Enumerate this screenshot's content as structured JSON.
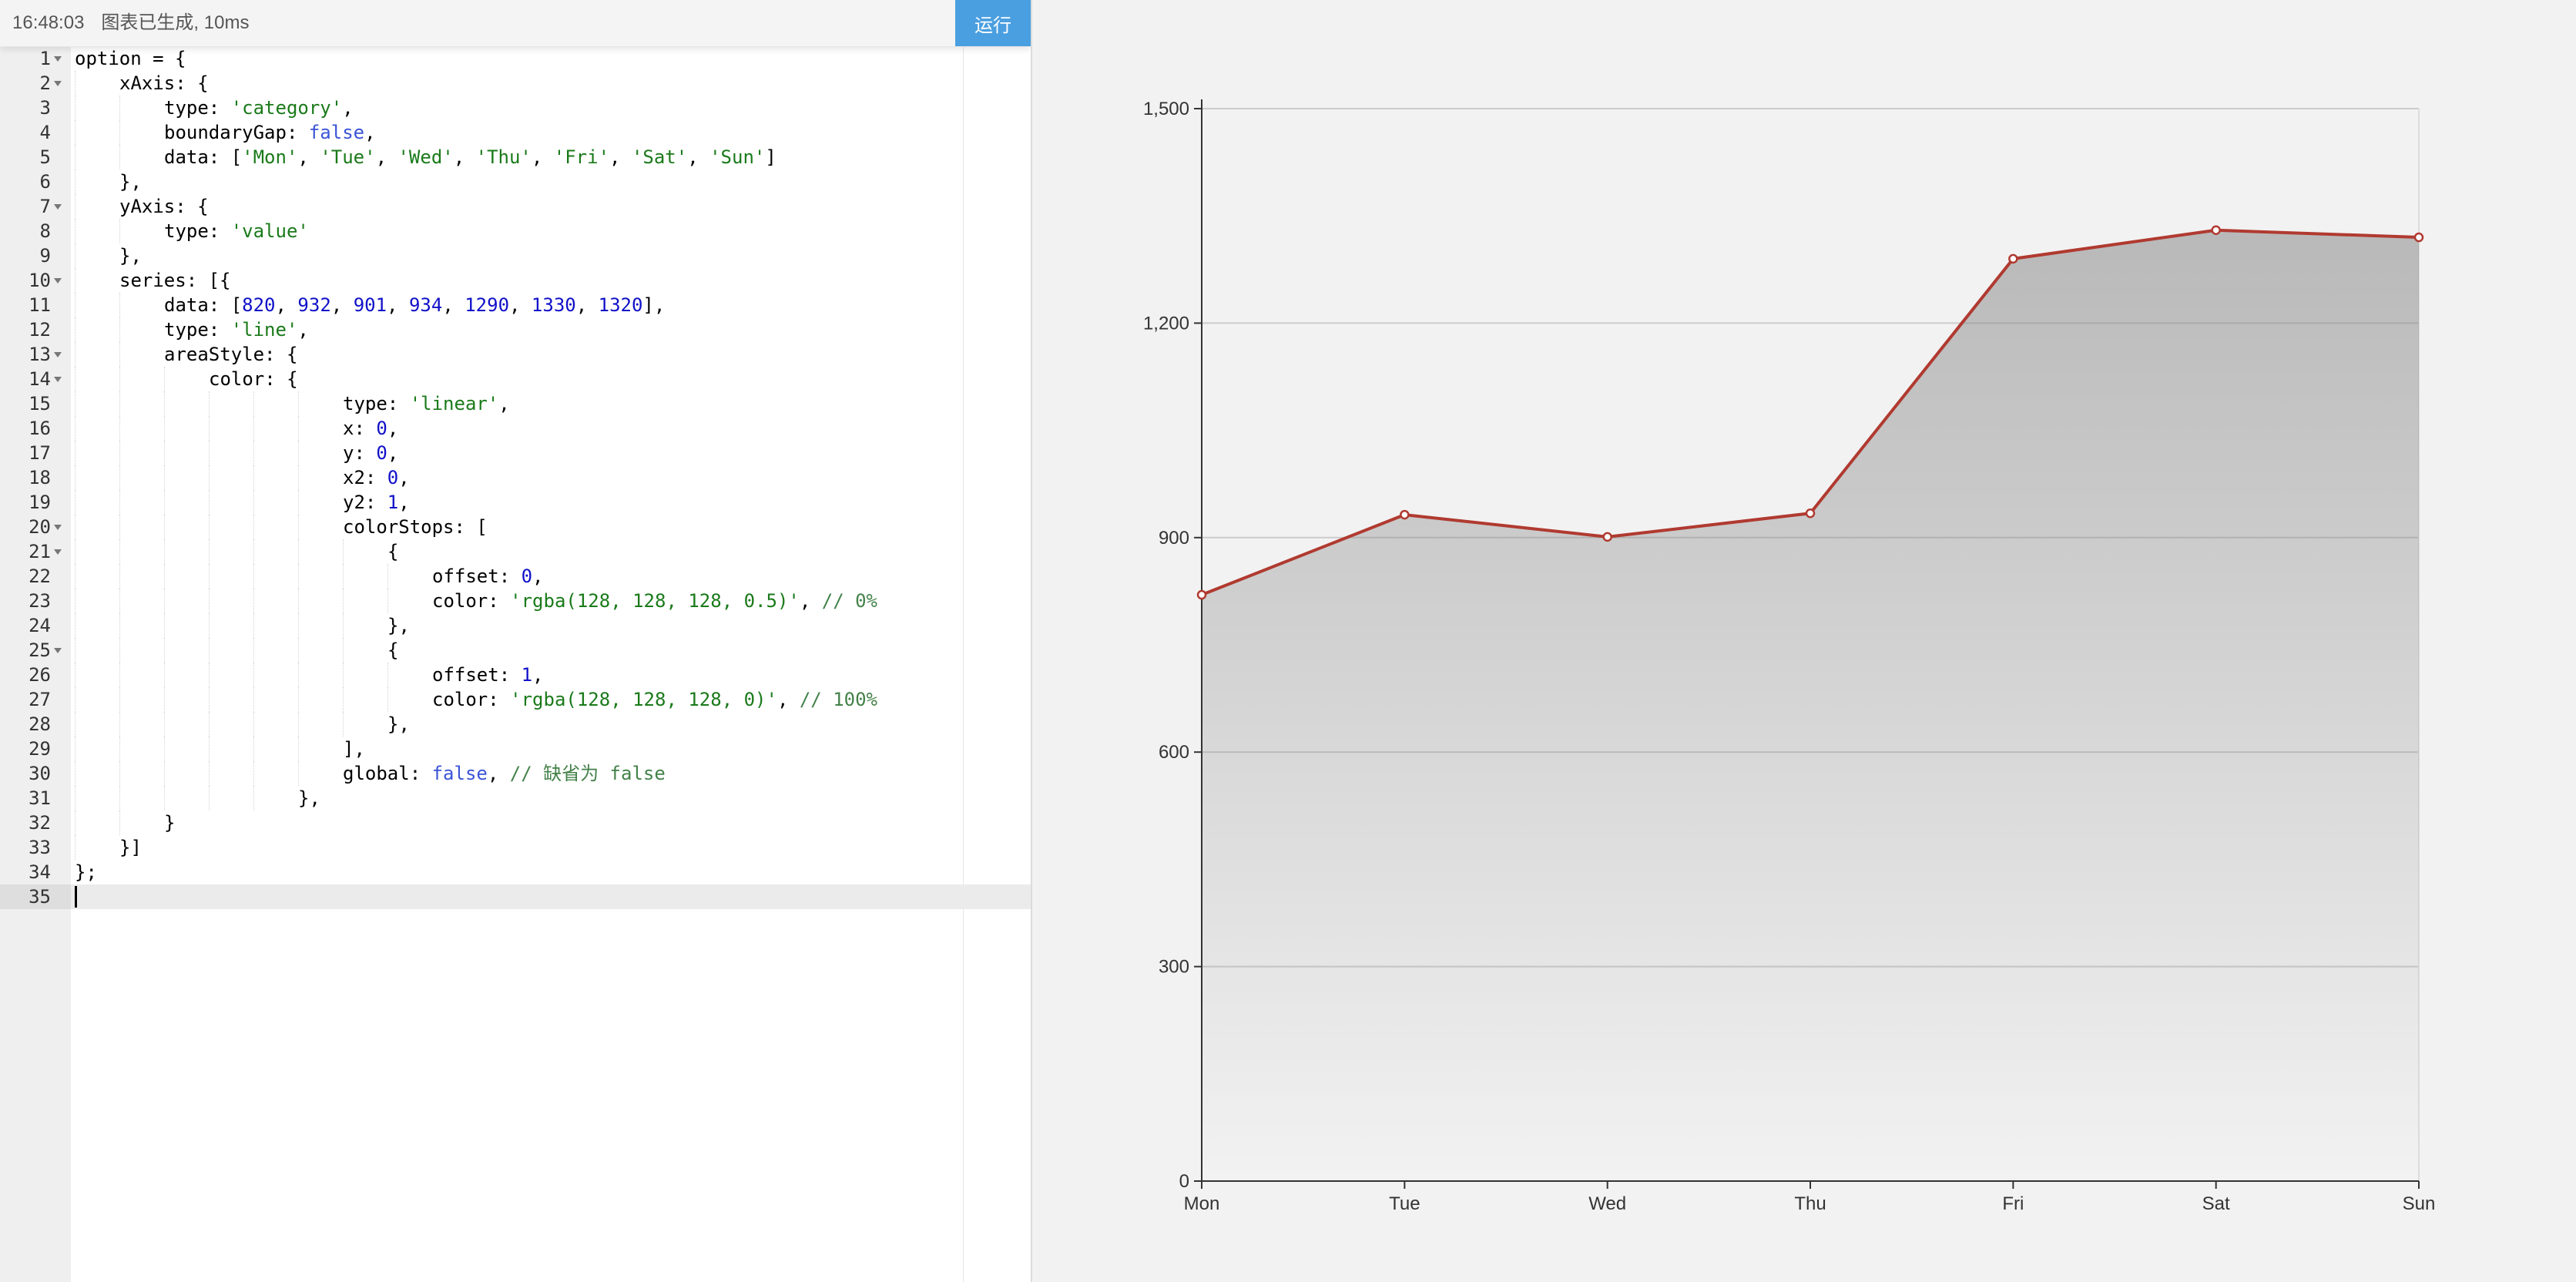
{
  "status": {
    "time": "16:48:03",
    "message": "图表已生成, 10ms"
  },
  "toolbar": {
    "run_label": "运行"
  },
  "editor": {
    "active_line": 35,
    "lines": [
      {
        "n": 1,
        "fold": true,
        "indent": 0,
        "tokens": [
          [
            "p",
            "option = {"
          ]
        ]
      },
      {
        "n": 2,
        "fold": true,
        "indent": 1,
        "tokens": [
          [
            "p",
            "xAxis: {"
          ]
        ]
      },
      {
        "n": 3,
        "fold": false,
        "indent": 2,
        "tokens": [
          [
            "p",
            "type: "
          ],
          [
            "s",
            "'category'"
          ],
          [
            "p",
            ","
          ]
        ]
      },
      {
        "n": 4,
        "fold": false,
        "indent": 2,
        "tokens": [
          [
            "p",
            "boundaryGap: "
          ],
          [
            "k",
            "false"
          ],
          [
            "p",
            ","
          ]
        ]
      },
      {
        "n": 5,
        "fold": false,
        "indent": 2,
        "tokens": [
          [
            "p",
            "data: ["
          ],
          [
            "s",
            "'Mon'"
          ],
          [
            "p",
            ", "
          ],
          [
            "s",
            "'Tue'"
          ],
          [
            "p",
            ", "
          ],
          [
            "s",
            "'Wed'"
          ],
          [
            "p",
            ", "
          ],
          [
            "s",
            "'Thu'"
          ],
          [
            "p",
            ", "
          ],
          [
            "s",
            "'Fri'"
          ],
          [
            "p",
            ", "
          ],
          [
            "s",
            "'Sat'"
          ],
          [
            "p",
            ", "
          ],
          [
            "s",
            "'Sun'"
          ],
          [
            "p",
            "]"
          ]
        ]
      },
      {
        "n": 6,
        "fold": false,
        "indent": 1,
        "tokens": [
          [
            "p",
            "},"
          ]
        ]
      },
      {
        "n": 7,
        "fold": true,
        "indent": 1,
        "tokens": [
          [
            "p",
            "yAxis: {"
          ]
        ]
      },
      {
        "n": 8,
        "fold": false,
        "indent": 2,
        "tokens": [
          [
            "p",
            "type: "
          ],
          [
            "s",
            "'value'"
          ]
        ]
      },
      {
        "n": 9,
        "fold": false,
        "indent": 1,
        "tokens": [
          [
            "p",
            "},"
          ]
        ]
      },
      {
        "n": 10,
        "fold": true,
        "indent": 1,
        "tokens": [
          [
            "p",
            "series: [{"
          ]
        ]
      },
      {
        "n": 11,
        "fold": false,
        "indent": 2,
        "tokens": [
          [
            "p",
            "data: ["
          ],
          [
            "n",
            "820"
          ],
          [
            "p",
            ", "
          ],
          [
            "n",
            "932"
          ],
          [
            "p",
            ", "
          ],
          [
            "n",
            "901"
          ],
          [
            "p",
            ", "
          ],
          [
            "n",
            "934"
          ],
          [
            "p",
            ", "
          ],
          [
            "n",
            "1290"
          ],
          [
            "p",
            ", "
          ],
          [
            "n",
            "1330"
          ],
          [
            "p",
            ", "
          ],
          [
            "n",
            "1320"
          ],
          [
            "p",
            "],"
          ]
        ]
      },
      {
        "n": 12,
        "fold": false,
        "indent": 2,
        "tokens": [
          [
            "p",
            "type: "
          ],
          [
            "s",
            "'line'"
          ],
          [
            "p",
            ","
          ]
        ]
      },
      {
        "n": 13,
        "fold": true,
        "indent": 2,
        "tokens": [
          [
            "p",
            "areaStyle: {"
          ]
        ]
      },
      {
        "n": 14,
        "fold": true,
        "indent": 3,
        "tokens": [
          [
            "p",
            "color: {"
          ]
        ]
      },
      {
        "n": 15,
        "fold": false,
        "indent": 6,
        "tokens": [
          [
            "p",
            "type: "
          ],
          [
            "s",
            "'linear'"
          ],
          [
            "p",
            ","
          ]
        ]
      },
      {
        "n": 16,
        "fold": false,
        "indent": 6,
        "tokens": [
          [
            "p",
            "x: "
          ],
          [
            "n",
            "0"
          ],
          [
            "p",
            ","
          ]
        ]
      },
      {
        "n": 17,
        "fold": false,
        "indent": 6,
        "tokens": [
          [
            "p",
            "y: "
          ],
          [
            "n",
            "0"
          ],
          [
            "p",
            ","
          ]
        ]
      },
      {
        "n": 18,
        "fold": false,
        "indent": 6,
        "tokens": [
          [
            "p",
            "x2: "
          ],
          [
            "n",
            "0"
          ],
          [
            "p",
            ","
          ]
        ]
      },
      {
        "n": 19,
        "fold": false,
        "indent": 6,
        "tokens": [
          [
            "p",
            "y2: "
          ],
          [
            "n",
            "1"
          ],
          [
            "p",
            ","
          ]
        ]
      },
      {
        "n": 20,
        "fold": true,
        "indent": 6,
        "tokens": [
          [
            "p",
            "colorStops: ["
          ]
        ]
      },
      {
        "n": 21,
        "fold": true,
        "indent": 7,
        "tokens": [
          [
            "p",
            "{"
          ]
        ]
      },
      {
        "n": 22,
        "fold": false,
        "indent": 8,
        "tokens": [
          [
            "p",
            "offset: "
          ],
          [
            "n",
            "0"
          ],
          [
            "p",
            ","
          ]
        ]
      },
      {
        "n": 23,
        "fold": false,
        "indent": 8,
        "tokens": [
          [
            "p",
            "color: "
          ],
          [
            "s",
            "'rgba(128, 128, 128, 0.5)'"
          ],
          [
            "p",
            ", "
          ],
          [
            "c",
            "// 0%"
          ]
        ]
      },
      {
        "n": 24,
        "fold": false,
        "indent": 7,
        "tokens": [
          [
            "p",
            "},"
          ]
        ]
      },
      {
        "n": 25,
        "fold": true,
        "indent": 7,
        "tokens": [
          [
            "p",
            "{"
          ]
        ]
      },
      {
        "n": 26,
        "fold": false,
        "indent": 8,
        "tokens": [
          [
            "p",
            "offset: "
          ],
          [
            "n",
            "1"
          ],
          [
            "p",
            ","
          ]
        ]
      },
      {
        "n": 27,
        "fold": false,
        "indent": 8,
        "tokens": [
          [
            "p",
            "color: "
          ],
          [
            "s",
            "'rgba(128, 128, 128, 0)'"
          ],
          [
            "p",
            ", "
          ],
          [
            "c",
            "// 100%"
          ]
        ]
      },
      {
        "n": 28,
        "fold": false,
        "indent": 7,
        "tokens": [
          [
            "p",
            "},"
          ]
        ]
      },
      {
        "n": 29,
        "fold": false,
        "indent": 6,
        "tokens": [
          [
            "p",
            "],"
          ]
        ]
      },
      {
        "n": 30,
        "fold": false,
        "indent": 6,
        "tokens": [
          [
            "p",
            "global: "
          ],
          [
            "k",
            "false"
          ],
          [
            "p",
            ", "
          ],
          [
            "c",
            "// 缺省为 false"
          ]
        ]
      },
      {
        "n": 31,
        "fold": false,
        "indent": 5,
        "tokens": [
          [
            "p",
            "},"
          ]
        ]
      },
      {
        "n": 32,
        "fold": false,
        "indent": 2,
        "tokens": [
          [
            "p",
            "}"
          ]
        ]
      },
      {
        "n": 33,
        "fold": false,
        "indent": 1,
        "tokens": [
          [
            "p",
            "}]"
          ]
        ]
      },
      {
        "n": 34,
        "fold": false,
        "indent": 0,
        "tokens": [
          [
            "p",
            "};"
          ]
        ]
      },
      {
        "n": 35,
        "fold": false,
        "indent": 0,
        "tokens": []
      }
    ]
  },
  "chart_data": {
    "type": "area",
    "categories": [
      "Mon",
      "Tue",
      "Wed",
      "Thu",
      "Fri",
      "Sat",
      "Sun"
    ],
    "series": [
      {
        "values": [
          820,
          932,
          901,
          934,
          1290,
          1330,
          1320
        ]
      }
    ],
    "y_ticks": [
      "0",
      "300",
      "600",
      "900",
      "1,200",
      "1,500"
    ],
    "ylim": [
      0,
      1500
    ],
    "grid": true,
    "line_color": "#b03a30",
    "area_color_top": "rgba(128,128,128,0.5)",
    "area_color_bottom": "rgba(128,128,128,0)"
  }
}
